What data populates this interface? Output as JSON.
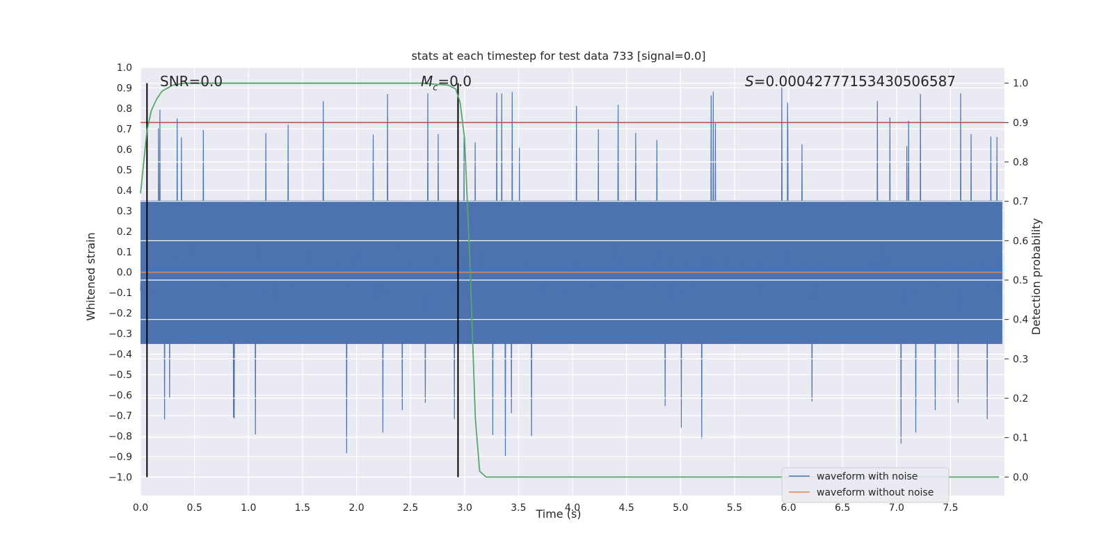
{
  "chart_data": {
    "type": "line",
    "title": "stats at each timestep for test data 733 [signal=0.0]",
    "xlabel": "Time (s)",
    "ylabel": "Whitened strain",
    "y2label": "Detection probability",
    "xlim": [
      0.0,
      8.0
    ],
    "ylim": [
      -1.09,
      1.0
    ],
    "y2lim": [
      -0.047,
      1.04
    ],
    "xticks": [
      "0.0",
      "0.5",
      "1.0",
      "1.5",
      "2.0",
      "2.5",
      "3.0",
      "3.5",
      "4.0",
      "4.5",
      "5.0",
      "5.5",
      "6.0",
      "6.5",
      "7.0",
      "7.5"
    ],
    "xtick_values": [
      0.0,
      0.5,
      1.0,
      1.5,
      2.0,
      2.5,
      3.0,
      3.5,
      4.0,
      4.5,
      5.0,
      5.5,
      6.0,
      6.5,
      7.0,
      7.5
    ],
    "yticks": [
      "1.0",
      "0.9",
      "0.8",
      "0.7",
      "0.6",
      "0.5",
      "0.4",
      "0.3",
      "0.2",
      "0.1",
      "0.0",
      "−0.1",
      "−0.2",
      "−0.3",
      "−0.4",
      "−0.5",
      "−0.6",
      "−0.7",
      "−0.8",
      "−0.9",
      "−1.0"
    ],
    "ytick_values": [
      1.0,
      0.9,
      0.8,
      0.7,
      0.6,
      0.5,
      0.4,
      0.3,
      0.2,
      0.1,
      0.0,
      -0.1,
      -0.2,
      -0.3,
      -0.4,
      -0.5,
      -0.6,
      -0.7,
      -0.8,
      -0.9,
      -1.0
    ],
    "y2ticks": [
      "1.0",
      "0.9",
      "0.8",
      "0.7",
      "0.6",
      "0.5",
      "0.4",
      "0.3",
      "0.2",
      "0.1",
      "0.0"
    ],
    "y2tick_values": [
      1.0,
      0.9,
      0.8,
      0.7,
      0.6,
      0.5,
      0.4,
      0.3,
      0.2,
      0.1,
      0.0
    ],
    "annotations": {
      "snr": "SNR=0.0",
      "mc_symbol": "M",
      "mc_sub": "c",
      "mc_value": "=0.0",
      "s_symbol": "S",
      "s_value": "=0.00042777153430506587"
    },
    "vlines_x": [
      0.06,
      2.94
    ],
    "threshold_y2": 0.9,
    "series": [
      {
        "name": "waveform with noise",
        "color": "#4c72b0",
        "kind": "noise",
        "amplitude_core": 0.35,
        "amplitude_max": 0.93
      },
      {
        "name": "waveform without noise",
        "color": "#dd8452",
        "x": [
          0.0,
          8.0
        ],
        "y": [
          0.0,
          0.0
        ]
      },
      {
        "name": "detection probability",
        "color": "#55a868",
        "axis": "right",
        "x": [
          0.0,
          0.03,
          0.06,
          0.1,
          0.15,
          0.2,
          0.3,
          0.4,
          0.6,
          1.0,
          2.0,
          2.6,
          2.85,
          2.92,
          2.96,
          3.0,
          3.05,
          3.1,
          3.14,
          3.2,
          3.4,
          5.0,
          7.95
        ],
        "y": [
          0.72,
          0.8,
          0.88,
          0.93,
          0.96,
          0.98,
          0.995,
          1.0,
          1.0,
          1.0,
          1.0,
          1.0,
          0.995,
          0.985,
          0.95,
          0.86,
          0.55,
          0.15,
          0.015,
          0.0,
          0.0,
          0.0,
          0.0
        ]
      }
    ],
    "legend": {
      "placement": "lower-right",
      "entries": [
        "waveform with noise",
        "waveform without noise"
      ]
    },
    "colors": {
      "background": "#eaeaf2",
      "grid": "#ffffff",
      "threshold": "#c44e52",
      "vline": "#000000"
    }
  }
}
